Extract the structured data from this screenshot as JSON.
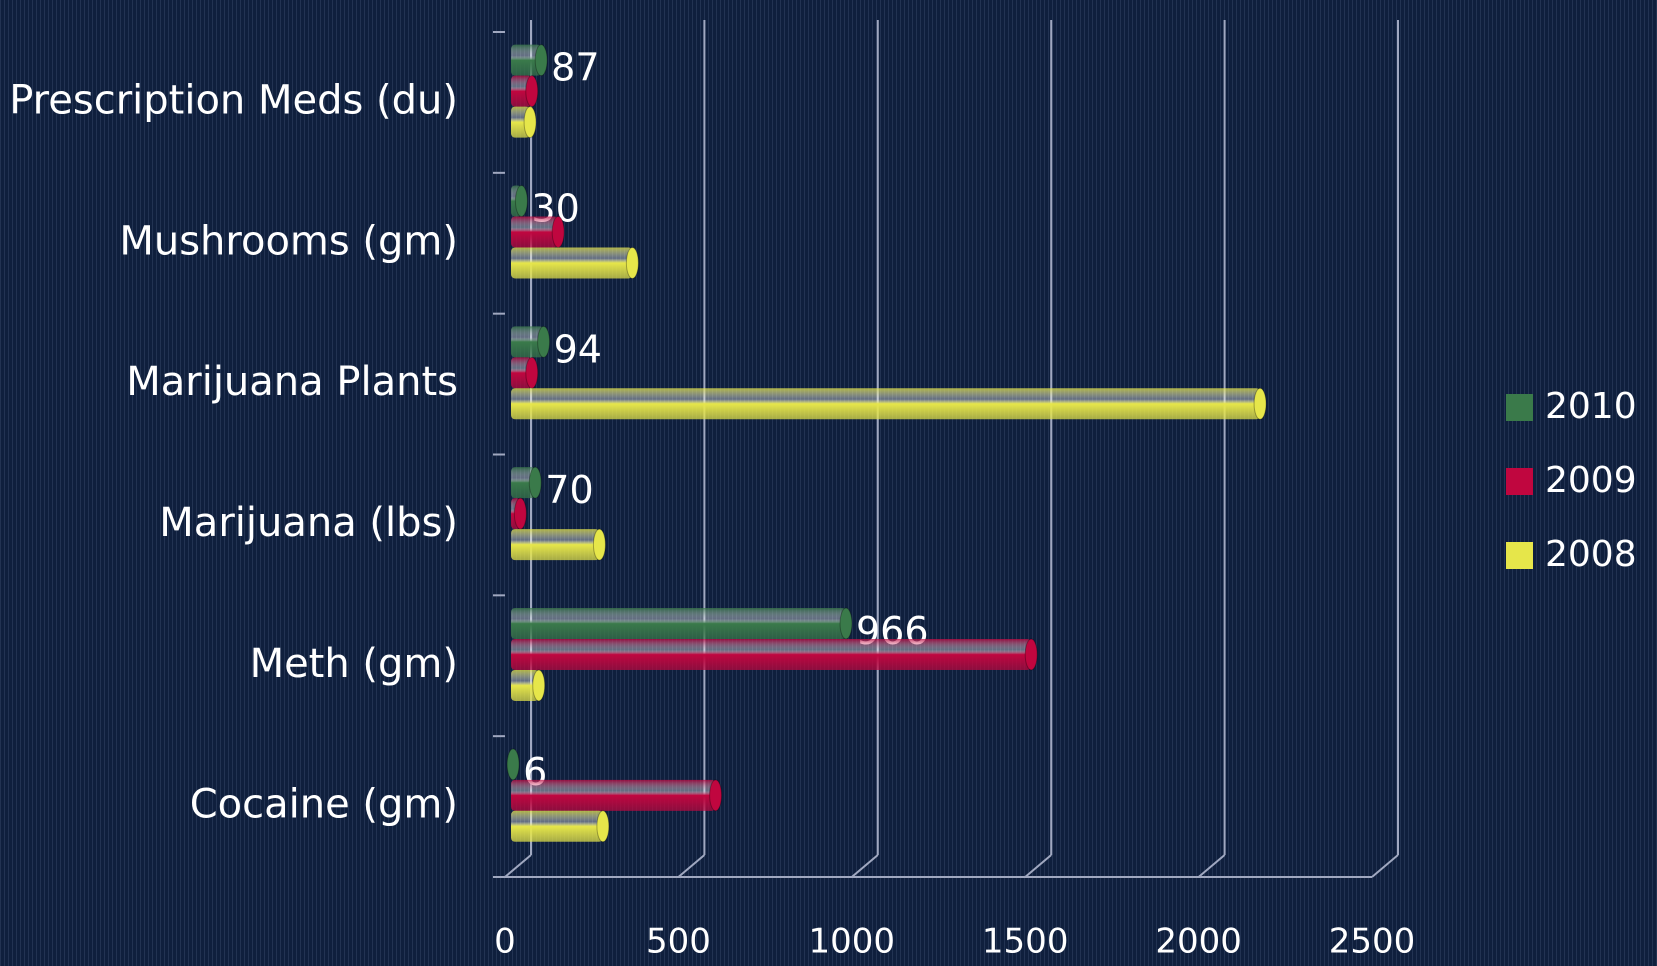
{
  "chart_data": {
    "type": "bar",
    "orientation": "horizontal",
    "categories": [
      "Prescription Meds (du)",
      "Mushrooms (gm)",
      "Marijuana Plants",
      "Marijuana (lbs)",
      "Meth (gm)",
      "Cocaine (gm)"
    ],
    "series": [
      {
        "name": "2010",
        "color": "#3a7a4a",
        "values": [
          87,
          30,
          94,
          70,
          966,
          6
        ],
        "data_labels": true
      },
      {
        "name": "2009",
        "color": "#c0063f",
        "values": [
          60,
          136,
          60,
          27,
          1500,
          590
        ]
      },
      {
        "name": "2008",
        "color": "#e6e64a",
        "values": [
          55,
          350,
          2160,
          255,
          80,
          265
        ]
      }
    ],
    "xlim": [
      0,
      2500
    ],
    "xticks": [
      0,
      500,
      1000,
      1500,
      2000,
      2500
    ],
    "grid": true,
    "legend": "right"
  }
}
